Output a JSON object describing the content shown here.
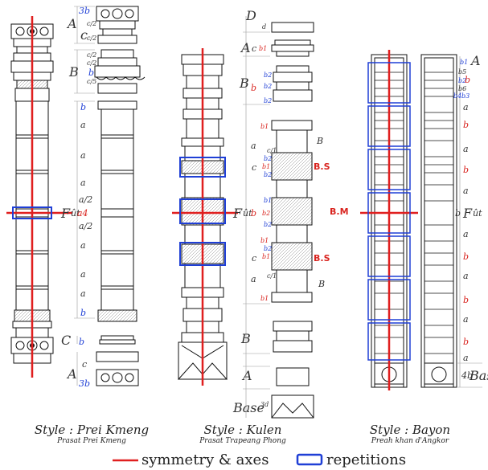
{
  "figure": {
    "styles": [
      {
        "title": "Style : Prei Kmeng",
        "subtitle": "Prasat Prei Kmeng"
      },
      {
        "title": "Style : Kulen",
        "subtitle": "Prasat Trapeang Phong"
      },
      {
        "title": "Style : Bayon",
        "subtitle": "Preah khan d'Angkor"
      }
    ],
    "prei_kmeng": {
      "top_b": "3b",
      "A": "A",
      "c_half_1": "c/2",
      "c_half_2": "c/2",
      "c1": "c",
      "c_half_3": "c/2",
      "c_half_4": "c/2",
      "b1": "b",
      "c_half_5": "c/5",
      "B": "B",
      "b2": "b",
      "a1": "a",
      "a2": "a",
      "a3": "a",
      "a_half_1": "a/2",
      "a_half_2": "a/2",
      "F": "F",
      "ut": "ût",
      "a4": "a4",
      "a5": "a",
      "a6": "a",
      "a7": "a",
      "b3": "b",
      "C": "C",
      "b4": "b",
      "A2": "A",
      "c2": "c",
      "b5": "3b"
    },
    "kulen": {
      "D": "D",
      "d": "d",
      "A": "A",
      "c": "c",
      "b_top": "b1",
      "B": "B",
      "b_red": "b",
      "b2a": "b2",
      "b2b": "b2",
      "b2c": "b2",
      "b1a": "b1",
      "a1": "a",
      "c1": "c",
      "b2d": "b2",
      "b1b": "b1",
      "b2e": "b2",
      "BS1": "B.S",
      "c1_small": "c/1",
      "B_small_1": "B",
      "F": "F",
      "ut": "ût",
      "b_mid": "b",
      "BM": "B.M",
      "b1c": "b1",
      "b2f": "b2",
      "b2g": "b2",
      "b1d": "b1",
      "c2": "c",
      "b1e": "b1",
      "BS2": "B.S",
      "a2": "a",
      "c2_small": "c/1",
      "B_small_2": "B",
      "b2h": "b2",
      "b1f": "b1",
      "B2": "B",
      "A2": "A",
      "Base": "Base",
      "b3d": "3d"
    },
    "bayon": {
      "b1": "b1",
      "A": "A",
      "b5": "b5",
      "b2": "b2",
      "b_red1": "b",
      "b6": "b6",
      "b4": "b4",
      "b3": "b3",
      "b_list": [
        "b",
        "b",
        "b",
        "b",
        "b",
        "b"
      ],
      "a_list": [
        "a",
        "a",
        "a",
        "a",
        "a",
        "a",
        "a"
      ],
      "F": "F",
      "ut": "ût",
      "b_mid": "b",
      "b4base": "4b",
      "Base": "Base"
    }
  },
  "legend": {
    "axes_label": "symmetry & axes",
    "repetitions_label": "repetitions",
    "axes_color": "#e01f1f",
    "repetitions_color": "#1f3fd6"
  }
}
